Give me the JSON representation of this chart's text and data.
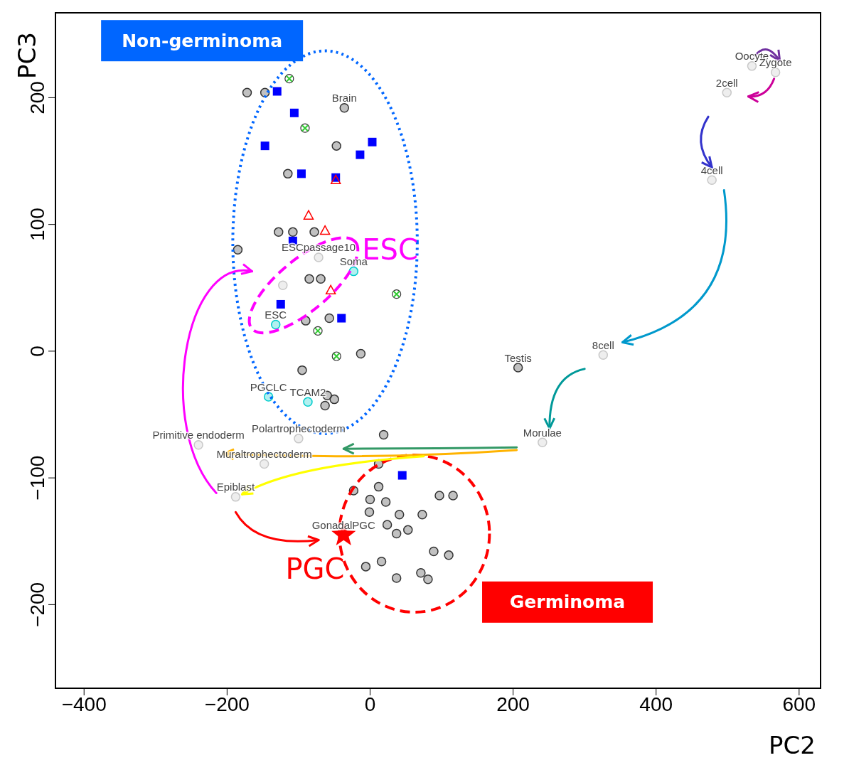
{
  "chart_data": {
    "type": "scatter",
    "xlabel": "PC2",
    "ylabel": "PC3",
    "xlim": [
      -440,
      630
    ],
    "ylim": [
      -266,
      267
    ],
    "xticks": [
      {
        "value": -400,
        "label": "−400"
      },
      {
        "value": -200,
        "label": "−200"
      },
      0,
      200,
      400,
      600
    ],
    "yticks": [
      {
        "value": -200,
        "label": "−200"
      },
      {
        "value": -100,
        "label": "−100"
      },
      0,
      100,
      200
    ],
    "grid": false,
    "legend": false,
    "series": [
      {
        "marker": "circle",
        "color": "#333333",
        "x": [
          -172,
          -147,
          -47,
          -115,
          -128,
          -108,
          -78,
          -185,
          -85,
          -69,
          -90,
          -57,
          -13,
          -95,
          -60,
          -50,
          -63,
          19,
          12,
          -36,
          207,
          -23,
          12,
          0,
          22,
          97,
          116,
          -1,
          41,
          73,
          24,
          53,
          37,
          89,
          110,
          16,
          -6,
          37,
          71,
          81
        ],
        "values": [
          204,
          204,
          162,
          140,
          94,
          94,
          94,
          80,
          57,
          57,
          24,
          26,
          -2,
          -15,
          -35,
          -38,
          -43,
          -66,
          -89,
          192,
          -13,
          -110,
          -107,
          -117,
          -119,
          -114,
          -114,
          -127,
          -129,
          -129,
          -137,
          -141,
          -144,
          -158,
          -161,
          -166,
          -170,
          -179,
          -175,
          -180
        ]
      },
      {
        "marker": "square",
        "color": "#0000ff",
        "x": [
          -130,
          -106,
          -147,
          3,
          -14,
          -96,
          -48,
          -108,
          -125,
          -40,
          45
        ],
        "values": [
          205,
          188,
          162,
          165,
          155,
          140,
          137,
          87,
          37,
          26,
          -98
        ]
      },
      {
        "marker": "cross",
        "color": "#33cc33",
        "x": [
          -113,
          -91,
          37,
          -73,
          -47
        ],
        "values": [
          215,
          176,
          45,
          16,
          -4
        ]
      },
      {
        "marker": "triangle",
        "color": "#ff0000",
        "x": [
          -86,
          -63,
          -48,
          -55
        ],
        "values": [
          107,
          95,
          135,
          48
        ]
      },
      {
        "marker": "circle",
        "color": "#00cccc",
        "x": [
          -23,
          -132,
          -142,
          -87
        ],
        "values": [
          63,
          21,
          -36,
          -40
        ]
      },
      {
        "marker": "circle",
        "color": "#c8c8c8",
        "x": [
          534,
          567,
          499,
          478,
          326,
          241,
          -100,
          -148,
          -240,
          -188,
          -72,
          -122
        ],
        "values": [
          225,
          220,
          204,
          135,
          -3,
          -72,
          -69,
          -89,
          -74,
          -115,
          74,
          52
        ]
      },
      {
        "marker": "star",
        "color": "#ff0000",
        "x": [
          -37
        ],
        "values": [
          -145
        ]
      }
    ],
    "annotations": [
      "Non-germinoma",
      "Germinoma",
      "ESC",
      "PGC",
      {
        "text": "Brain",
        "x": -36,
        "y": 192
      },
      {
        "text": "Soma",
        "x": -23,
        "y": 63
      },
      {
        "text": "ESC",
        "x": -132,
        "y": 21
      },
      {
        "text": "PGCLC",
        "x": -142,
        "y": -36
      },
      {
        "text": "TCAM2",
        "x": -87,
        "y": -40
      },
      {
        "text": "Testis",
        "x": 207,
        "y": -13
      },
      {
        "text": "Oocyte",
        "x": 534,
        "y": 225
      },
      {
        "text": "Zygote",
        "x": 567,
        "y": 220
      },
      {
        "text": "2cell",
        "x": 499,
        "y": 204
      },
      {
        "text": "4cell",
        "x": 478,
        "y": 135
      },
      {
        "text": "8cell",
        "x": 326,
        "y": -3
      },
      {
        "text": "Morulae",
        "x": 241,
        "y": -72
      },
      {
        "text": "Polartrophectoderm",
        "x": -100,
        "y": -69
      },
      {
        "text": "Muraltrophectoderm",
        "x": -148,
        "y": -89
      },
      {
        "text": "Primitive endoderm",
        "x": -240,
        "y": -74
      },
      {
        "text": "Epiblast",
        "x": -188,
        "y": -115
      },
      {
        "text": "ESCpassage10",
        "x": -72,
        "y": 74
      },
      {
        "text": "GonadalPGC",
        "x": -37,
        "y": -145
      }
    ]
  }
}
